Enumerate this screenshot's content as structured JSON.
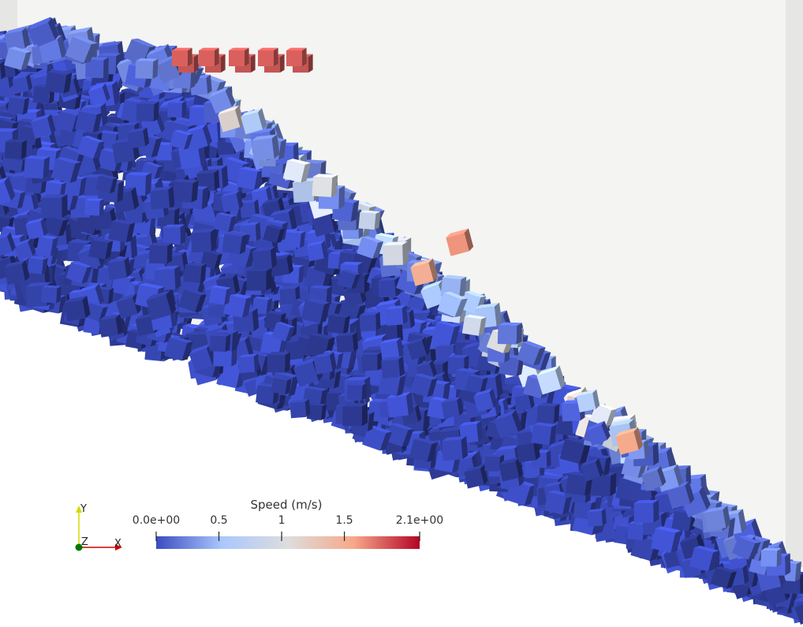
{
  "colorbar": {
    "title": "Speed (m/s)",
    "ticks": [
      {
        "value": 0.0,
        "label": "0.0e+00"
      },
      {
        "value": 0.5,
        "label": "0.5"
      },
      {
        "value": 1.0,
        "label": "1"
      },
      {
        "value": 1.5,
        "label": "1.5"
      },
      {
        "value": 2.1,
        "label": "2.1e+00"
      }
    ],
    "range": [
      0.0,
      2.1
    ],
    "colors": [
      "#3b4cc0",
      "#aac7fd",
      "#dddddd",
      "#f7a889",
      "#b40426"
    ]
  },
  "axes": {
    "y_label": "Y",
    "z_label": "Z",
    "x_label": "X",
    "y_color": "#d8d800",
    "x_color": "#cc0000",
    "z_color": "#007700"
  },
  "scene": {
    "background_color": "#f4f4f2",
    "floor_color": "#ffffff",
    "wall_color": "#e6e6e4",
    "particle_base_color": "#3b4cc0"
  }
}
